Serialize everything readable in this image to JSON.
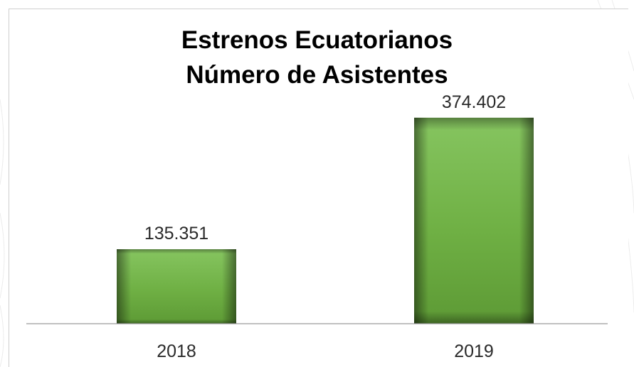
{
  "chart_data": {
    "type": "bar",
    "title": [
      "Estrenos Ecuatorianos",
      "Número de Asistentes"
    ],
    "categories": [
      "2018",
      "2019"
    ],
    "values": [
      135351,
      374402
    ],
    "value_labels": [
      "135.351",
      "374.402"
    ],
    "ylim": [
      0,
      400000
    ],
    "grid": false,
    "legend": "none",
    "colors": {
      "bar_top": "#7fbf5a",
      "bar_mid": "#6aaa3e",
      "bar_edge": "#3c6a1f",
      "axis": "#9a9a9a",
      "text": "#2a2a2a"
    }
  }
}
